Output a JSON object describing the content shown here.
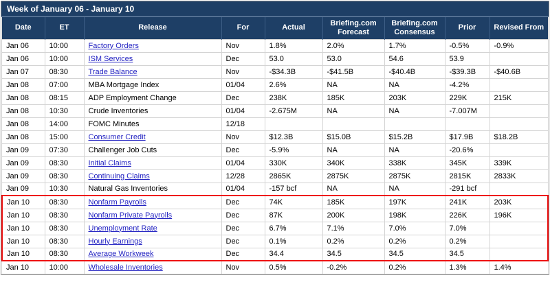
{
  "title": "Week of January 06 - January 10",
  "columns": [
    {
      "label": "Date"
    },
    {
      "label": "ET"
    },
    {
      "label": "Release"
    },
    {
      "label": "For"
    },
    {
      "label": "Actual"
    },
    {
      "label": "Briefing.com Forecast"
    },
    {
      "label": "Briefing.com Consensus"
    },
    {
      "label": "Prior"
    },
    {
      "label": "Revised From"
    }
  ],
  "rows": [
    {
      "date": "Jan 06",
      "et": "10:00",
      "release": "Factory Orders",
      "is_link": true,
      "for": "Nov",
      "actual": "1.8%",
      "forecast": "2.0%",
      "consensus": "1.7%",
      "prior": "-0.5%",
      "revised": "-0.9%",
      "highlighted": false
    },
    {
      "date": "Jan 06",
      "et": "10:00",
      "release": "ISM Services",
      "is_link": true,
      "for": "Dec",
      "actual": "53.0",
      "forecast": "53.0",
      "consensus": "54.6",
      "prior": "53.9",
      "revised": "",
      "highlighted": false
    },
    {
      "date": "Jan 07",
      "et": "08:30",
      "release": "Trade Balance",
      "is_link": true,
      "for": "Nov",
      "actual": "-$34.3B",
      "forecast": "-$41.5B",
      "consensus": "-$40.4B",
      "prior": "-$39.3B",
      "revised": "-$40.6B",
      "highlighted": false
    },
    {
      "date": "Jan 08",
      "et": "07:00",
      "release": "MBA Mortgage Index",
      "is_link": false,
      "for": "01/04",
      "actual": "2.6%",
      "forecast": "NA",
      "consensus": "NA",
      "prior": "-4.2%",
      "revised": "",
      "highlighted": false
    },
    {
      "date": "Jan 08",
      "et": "08:15",
      "release": "ADP Employment Change",
      "is_link": false,
      "for": "Dec",
      "actual": "238K",
      "forecast": "185K",
      "consensus": "203K",
      "prior": "229K",
      "revised": "215K",
      "highlighted": false
    },
    {
      "date": "Jan 08",
      "et": "10:30",
      "release": "Crude Inventories",
      "is_link": false,
      "for": "01/04",
      "actual": "-2.675M",
      "forecast": "NA",
      "consensus": "NA",
      "prior": "-7.007M",
      "revised": "",
      "highlighted": false
    },
    {
      "date": "Jan 08",
      "et": "14:00",
      "release": "FOMC Minutes",
      "is_link": false,
      "for": "12/18",
      "actual": "",
      "forecast": "",
      "consensus": "",
      "prior": "",
      "revised": "",
      "highlighted": false
    },
    {
      "date": "Jan 08",
      "et": "15:00",
      "release": "Consumer Credit",
      "is_link": true,
      "for": "Nov",
      "actual": "$12.3B",
      "forecast": "$15.0B",
      "consensus": "$15.2B",
      "prior": "$17.9B",
      "revised": "$18.2B",
      "highlighted": false
    },
    {
      "date": "Jan 09",
      "et": "07:30",
      "release": "Challenger Job Cuts",
      "is_link": false,
      "for": "Dec",
      "actual": "-5.9%",
      "forecast": "NA",
      "consensus": "NA",
      "prior": "-20.6%",
      "revised": "",
      "highlighted": false
    },
    {
      "date": "Jan 09",
      "et": "08:30",
      "release": "Initial Claims",
      "is_link": true,
      "for": "01/04",
      "actual": "330K",
      "forecast": "340K",
      "consensus": "338K",
      "prior": "345K",
      "revised": "339K",
      "highlighted": false
    },
    {
      "date": "Jan 09",
      "et": "08:30",
      "release": "Continuing Claims",
      "is_link": true,
      "for": "12/28",
      "actual": "2865K",
      "forecast": "2875K",
      "consensus": "2875K",
      "prior": "2815K",
      "revised": "2833K",
      "highlighted": false
    },
    {
      "date": "Jan 09",
      "et": "10:30",
      "release": "Natural Gas Inventories",
      "is_link": false,
      "for": "01/04",
      "actual": "-157 bcf",
      "forecast": "NA",
      "consensus": "NA",
      "prior": "-291 bcf",
      "revised": "",
      "highlighted": false
    },
    {
      "date": "Jan 10",
      "et": "08:30",
      "release": "Nonfarm Payrolls",
      "is_link": true,
      "for": "Dec",
      "actual": "74K",
      "forecast": "185K",
      "consensus": "197K",
      "prior": "241K",
      "revised": "203K",
      "highlighted": true
    },
    {
      "date": "Jan 10",
      "et": "08:30",
      "release": "Nonfarm Private Payrolls",
      "is_link": true,
      "for": "Dec",
      "actual": "87K",
      "forecast": "200K",
      "consensus": "198K",
      "prior": "226K",
      "revised": "196K",
      "highlighted": true
    },
    {
      "date": "Jan 10",
      "et": "08:30",
      "release": "Unemployment Rate",
      "is_link": true,
      "for": "Dec",
      "actual": "6.7%",
      "forecast": "7.1%",
      "consensus": "7.0%",
      "prior": "7.0%",
      "revised": "",
      "highlighted": true
    },
    {
      "date": "Jan 10",
      "et": "08:30",
      "release": "Hourly Earnings",
      "is_link": true,
      "for": "Dec",
      "actual": "0.1%",
      "forecast": "0.2%",
      "consensus": "0.2%",
      "prior": "0.2%",
      "revised": "",
      "highlighted": true
    },
    {
      "date": "Jan 10",
      "et": "08:30",
      "release": "Average Workweek",
      "is_link": true,
      "for": "Dec",
      "actual": "34.4",
      "forecast": "34.5",
      "consensus": "34.5",
      "prior": "34.5",
      "revised": "",
      "highlighted": true
    },
    {
      "date": "Jan 10",
      "et": "10:00",
      "release": "Wholesale Inventories",
      "is_link": true,
      "for": "Nov",
      "actual": "0.5%",
      "forecast": "-0.2%",
      "consensus": "0.2%",
      "prior": "1.3%",
      "revised": "1.4%",
      "highlighted": false
    }
  ],
  "colors": {
    "header_bg": "#1e3f66",
    "link_color": "#2323c2",
    "highlight_border": "#ee1111"
  }
}
